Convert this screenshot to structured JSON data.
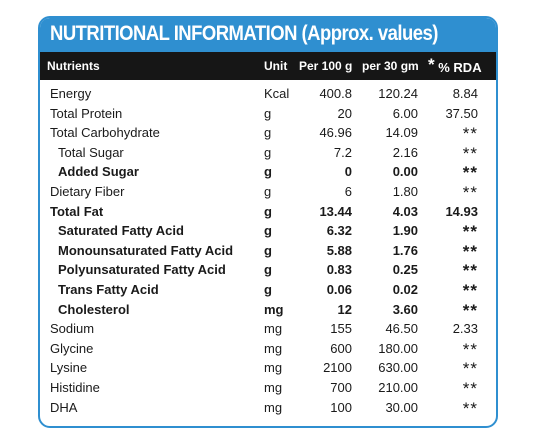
{
  "title": "NUTRITIONAL INFORMATION (Approx. values)",
  "header": {
    "nutrients": "Nutrients",
    "unit": "Unit",
    "per100": "Per 100 g",
    "per30": "per 30 gm",
    "rda_star": "*",
    "rda": "% RDA"
  },
  "rows": [
    {
      "name": "Energy",
      "unit": "Kcal",
      "per100": "400.8",
      "per30": "120.24",
      "rda": "8.84",
      "bold": false,
      "indent": false
    },
    {
      "name": "Total Protein",
      "unit": "g",
      "per100": "20",
      "per30": "6.00",
      "rda": "37.50",
      "bold": false,
      "indent": false
    },
    {
      "name": "Total Carbohydrate",
      "unit": "g",
      "per100": "46.96",
      "per30": "14.09",
      "rda": "**",
      "bold": false,
      "indent": false
    },
    {
      "name": "Total Sugar",
      "unit": "g",
      "per100": "7.2",
      "per30": "2.16",
      "rda": "**",
      "bold": false,
      "indent": true
    },
    {
      "name": "Added Sugar",
      "unit": "g",
      "per100": "0",
      "per30": "0.00",
      "rda": "**",
      "bold": true,
      "indent": true
    },
    {
      "name": "Dietary Fiber",
      "unit": "g",
      "per100": "6",
      "per30": "1.80",
      "rda": "**",
      "bold": false,
      "indent": false
    },
    {
      "name": "Total Fat",
      "unit": "g",
      "per100": "13.44",
      "per30": "4.03",
      "rda": "14.93",
      "bold": true,
      "indent": false
    },
    {
      "name": "Saturated Fatty Acid",
      "unit": "g",
      "per100": "6.32",
      "per30": "1.90",
      "rda": "**",
      "bold": true,
      "indent": true
    },
    {
      "name": "Monounsaturated Fatty  Acid",
      "unit": "g",
      "per100": "5.88",
      "per30": "1.76",
      "rda": "**",
      "bold": true,
      "indent": true
    },
    {
      "name": "Polyunsaturated Fatty Acid",
      "unit": "g",
      "per100": "0.83",
      "per30": "0.25",
      "rda": "**",
      "bold": true,
      "indent": true
    },
    {
      "name": "Trans Fatty Acid",
      "unit": "g",
      "per100": "0.06",
      "per30": "0.02",
      "rda": "**",
      "bold": true,
      "indent": true
    },
    {
      "name": "Cholesterol",
      "unit": "mg",
      "per100": "12",
      "per30": "3.60",
      "rda": "**",
      "bold": true,
      "indent": true
    },
    {
      "name": "Sodium",
      "unit": "mg",
      "per100": "155",
      "per30": "46.50",
      "rda": "2.33",
      "bold": false,
      "indent": false
    },
    {
      "name": "Glycine",
      "unit": "mg",
      "per100": "600",
      "per30": "180.00",
      "rda": "**",
      "bold": false,
      "indent": false
    },
    {
      "name": "Lysine",
      "unit": "mg",
      "per100": "2100",
      "per30": "630.00",
      "rda": "**",
      "bold": false,
      "indent": false
    },
    {
      "name": "Histidine",
      "unit": "mg",
      "per100": "700",
      "per30": "210.00",
      "rda": "**",
      "bold": false,
      "indent": false
    },
    {
      "name": "DHA",
      "unit": "mg",
      "per100": "100",
      "per30": "30.00",
      "rda": "**",
      "bold": false,
      "indent": false
    }
  ],
  "colors": {
    "accent": "#2f8fd0",
    "header_bg": "#161616",
    "text": "#1a1a1a"
  }
}
